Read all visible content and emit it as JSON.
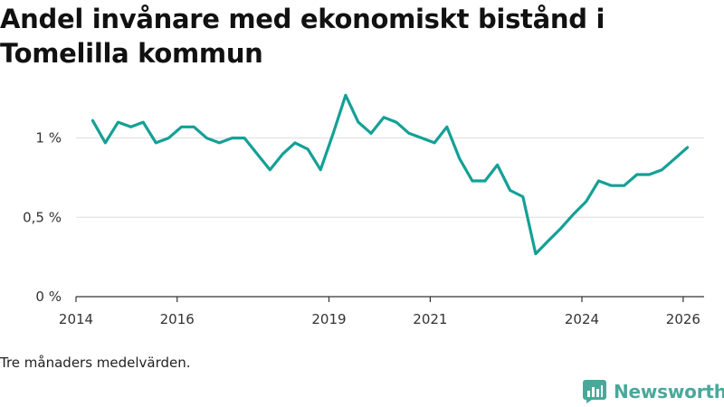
{
  "title": "Andel invånare med ekonomiskt bistånd i Tomelilla kommun",
  "note": "Tre månaders medelvärden.",
  "brand": {
    "name": "Newsworthy",
    "icon": "newsworthy-logo-icon",
    "color": "#4aa89a"
  },
  "colors": {
    "line": "#14a096",
    "grid": "#dddddd",
    "axis": "#333333"
  },
  "chart_data": {
    "type": "line",
    "title": "Andel invånare med ekonomiskt bistånd i Tomelilla kommun",
    "xlabel": "",
    "ylabel": "",
    "xlim": [
      "2014-01-01",
      "2026-06-01"
    ],
    "ylim": [
      0,
      1.3
    ],
    "grid": true,
    "y_ticks": [
      {
        "value": 0,
        "label": "0 %"
      },
      {
        "value": 0.5,
        "label": "0,5 %"
      },
      {
        "value": 1,
        "label": "1 %"
      }
    ],
    "x_ticks": [
      {
        "value": "2014-01-01",
        "label": "2014"
      },
      {
        "value": "2016-01-01",
        "label": "2016"
      },
      {
        "value": "2019-01-01",
        "label": "2019"
      },
      {
        "value": "2021-01-01",
        "label": "2021"
      },
      {
        "value": "2024-01-01",
        "label": "2024"
      },
      {
        "value": "2026-01-01",
        "label": "2026"
      }
    ],
    "series": [
      {
        "x": [
          "2014-05",
          "2014-08",
          "2014-11",
          "2015-02",
          "2015-05",
          "2015-08",
          "2015-11",
          "2016-02",
          "2016-05",
          "2016-08",
          "2016-11",
          "2017-02",
          "2017-05",
          "2017-08",
          "2017-11",
          "2018-02",
          "2018-05",
          "2018-08",
          "2018-11",
          "2019-02",
          "2019-05",
          "2019-08",
          "2019-11",
          "2020-02",
          "2020-05",
          "2020-08",
          "2020-11",
          "2021-02",
          "2021-05",
          "2021-08",
          "2021-11",
          "2022-02",
          "2022-05",
          "2022-08",
          "2022-11",
          "2023-02",
          "2023-05",
          "2023-08",
          "2023-11",
          "2024-02",
          "2024-05",
          "2024-08",
          "2024-11",
          "2025-02",
          "2025-05",
          "2025-08",
          "2025-11",
          "2026-02"
        ],
        "values": [
          1.11,
          0.97,
          1.1,
          1.07,
          1.1,
          0.97,
          1.0,
          1.07,
          1.07,
          1.0,
          0.97,
          1.0,
          1.0,
          0.9,
          0.8,
          0.9,
          0.97,
          0.93,
          0.8,
          1.03,
          1.27,
          1.1,
          1.03,
          1.13,
          1.1,
          1.03,
          1.0,
          0.97,
          1.07,
          0.87,
          0.73,
          0.73,
          0.83,
          0.67,
          0.63,
          0.27,
          0.35,
          0.43,
          0.52,
          0.6,
          0.73,
          0.7,
          0.7,
          0.77,
          0.77,
          0.8,
          0.87,
          0.94
        ]
      }
    ]
  }
}
